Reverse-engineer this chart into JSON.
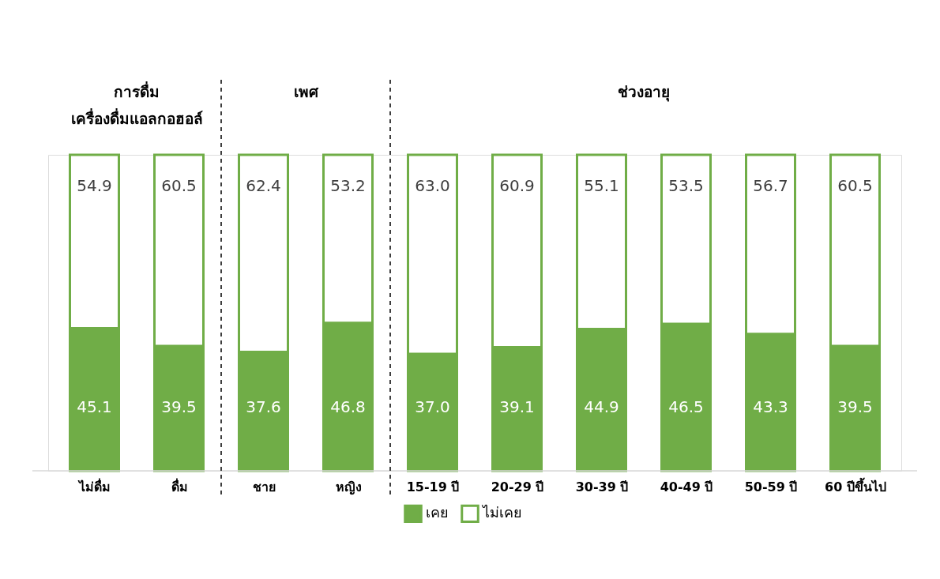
{
  "chart_data": {
    "type": "bar",
    "stacked": true,
    "legend": "bottom",
    "categories": [
      "ไม่ดื่ม",
      "ดื่ม",
      "ชาย",
      "หญิง",
      "15-19 ปี",
      "20-29 ปี",
      "30-39 ปี",
      "40-49 ปี",
      "50-59 ปี",
      "60 ปีขึ้นไป"
    ],
    "series": [
      {
        "name": "เคย",
        "color": "#70ad47",
        "values": [
          45.1,
          39.5,
          37.6,
          46.8,
          37.0,
          39.1,
          44.9,
          46.5,
          43.3,
          39.5
        ],
        "value_labels": [
          "45.1",
          "39.5",
          "37.6",
          "46.8",
          "37.0",
          "39.1",
          "44.9",
          "46.5",
          "43.3",
          "39.5"
        ]
      },
      {
        "name": "ไม่เคย",
        "color": "#ffffff",
        "values": [
          54.9,
          60.5,
          62.4,
          53.2,
          63.0,
          60.9,
          55.1,
          53.5,
          56.7,
          60.5
        ],
        "value_labels": [
          "54.9",
          "60.5",
          "62.4",
          "53.2",
          "63.0",
          "60.9",
          "55.1",
          "53.5",
          "56.7",
          "60.5"
        ]
      }
    ],
    "annotations": [
      "การดื่ม\nเครื่องดื่มแอลกอฮอล์",
      "เพศ",
      "ช่วงอายุ"
    ]
  }
}
